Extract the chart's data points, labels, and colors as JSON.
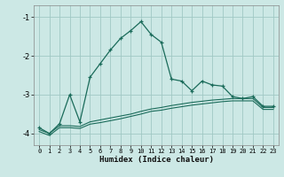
{
  "xlabel": "Humidex (Indice chaleur)",
  "bg_color": "#cce8e5",
  "grid_color": "#a0c8c4",
  "line_color": "#1a6b5a",
  "xlim": [
    -0.5,
    23.5
  ],
  "ylim": [
    -4.3,
    -0.7
  ],
  "xticks": [
    0,
    1,
    2,
    3,
    4,
    5,
    6,
    7,
    8,
    9,
    10,
    11,
    12,
    13,
    14,
    15,
    16,
    17,
    18,
    19,
    20,
    21,
    22,
    23
  ],
  "yticks": [
    -4,
    -3,
    -2,
    -1
  ],
  "line1_x": [
    0,
    1,
    2,
    3,
    4,
    5,
    6,
    7,
    8,
    9,
    10,
    11,
    12,
    13,
    14,
    15,
    16,
    17,
    18,
    19,
    20,
    21,
    22,
    23
  ],
  "line1_y": [
    -3.85,
    -4.0,
    -3.75,
    -3.0,
    -3.7,
    -2.55,
    -2.2,
    -1.85,
    -1.55,
    -1.35,
    -1.12,
    -1.45,
    -1.65,
    -2.6,
    -2.65,
    -2.9,
    -2.65,
    -2.75,
    -2.78,
    -3.05,
    -3.1,
    -3.05,
    -3.3,
    -3.3
  ],
  "line2_x": [
    0,
    1,
    2,
    3,
    4,
    5,
    6,
    7,
    8,
    9,
    10,
    11,
    12,
    13,
    14,
    15,
    16,
    17,
    18,
    19,
    20,
    21,
    22,
    23
  ],
  "line2_y": [
    -3.9,
    -4.0,
    -3.8,
    -3.8,
    -3.82,
    -3.7,
    -3.65,
    -3.6,
    -3.55,
    -3.5,
    -3.43,
    -3.37,
    -3.33,
    -3.28,
    -3.24,
    -3.2,
    -3.17,
    -3.14,
    -3.12,
    -3.1,
    -3.1,
    -3.1,
    -3.33,
    -3.33
  ],
  "line3_x": [
    0,
    1,
    2,
    3,
    4,
    5,
    6,
    7,
    8,
    9,
    10,
    11,
    12,
    13,
    14,
    15,
    16,
    17,
    18,
    19,
    20,
    21,
    22,
    23
  ],
  "line3_y": [
    -3.95,
    -4.05,
    -3.85,
    -3.85,
    -3.87,
    -3.76,
    -3.72,
    -3.67,
    -3.62,
    -3.56,
    -3.5,
    -3.43,
    -3.4,
    -3.35,
    -3.31,
    -3.27,
    -3.24,
    -3.21,
    -3.18,
    -3.16,
    -3.16,
    -3.16,
    -3.38,
    -3.38
  ]
}
